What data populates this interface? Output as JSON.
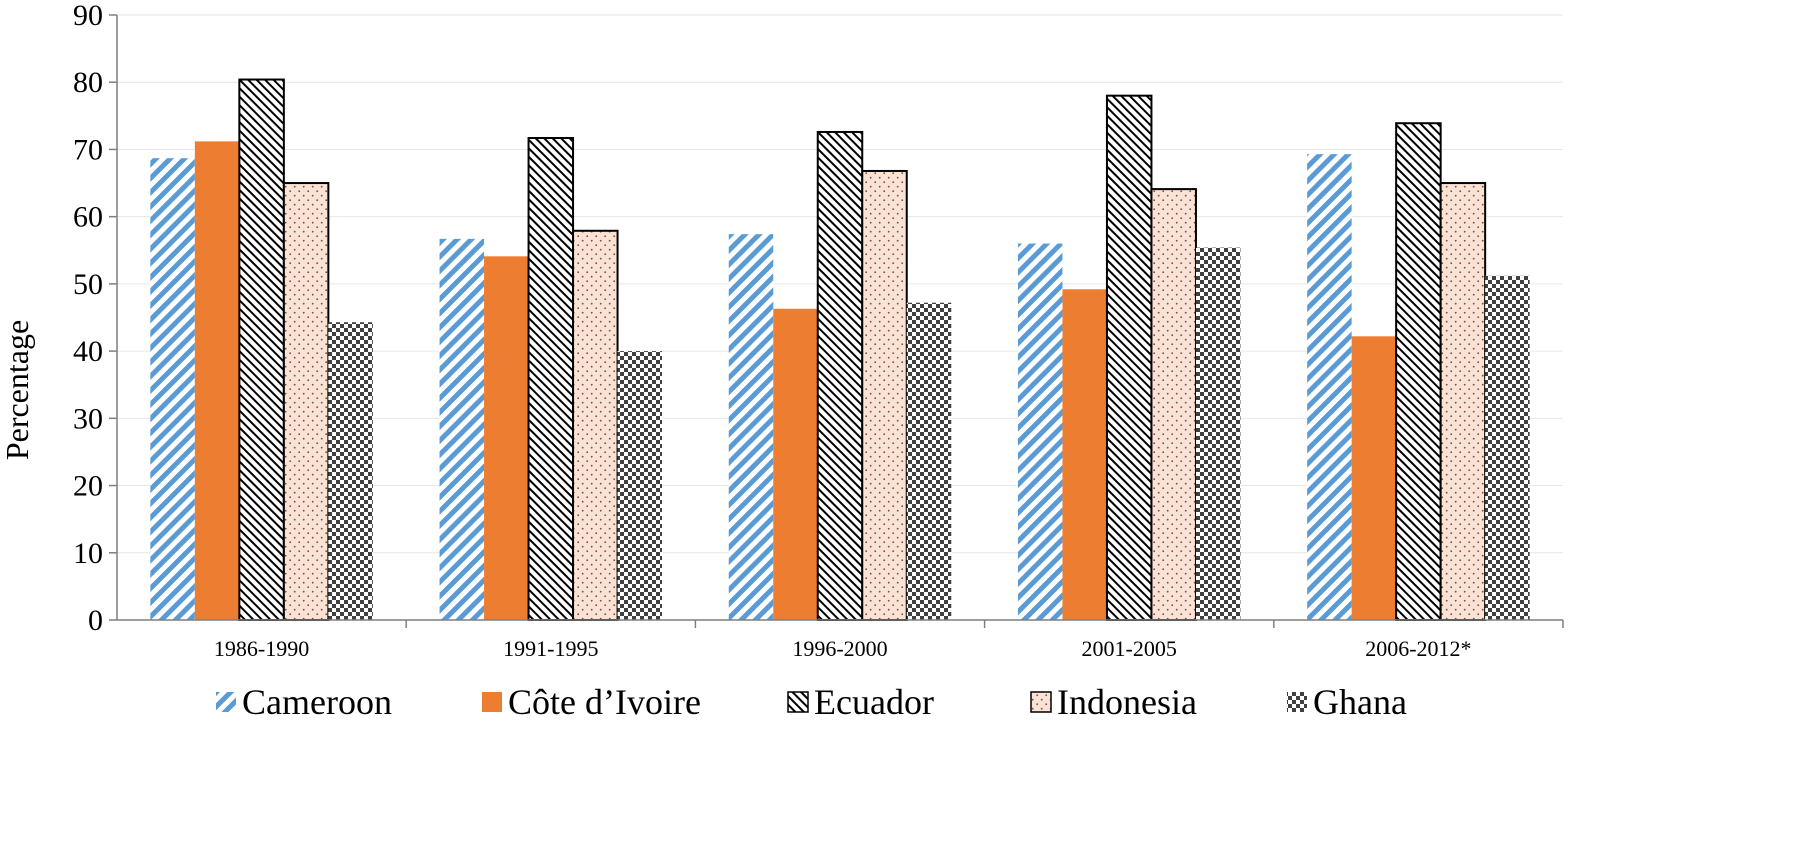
{
  "chart_data": {
    "type": "bar",
    "title": "",
    "xlabel": "",
    "ylabel": "Percentage",
    "ylim": [
      0,
      90
    ],
    "yticks": [
      0,
      10,
      20,
      30,
      40,
      50,
      60,
      70,
      80,
      90
    ],
    "grid": true,
    "legend_position": "bottom",
    "categories": [
      "1986-1990",
      "1991-1995",
      "1996-2000",
      "2001-2005",
      "2006-2012*"
    ],
    "series": [
      {
        "name": "Cameroon",
        "values": [
          68.7,
          56.7,
          57.4,
          56.0,
          69.3
        ],
        "color": "#5b9bd5",
        "pattern": "diagonal-stripes"
      },
      {
        "name": "Côte d’Ivoire",
        "values": [
          71.2,
          54.1,
          46.3,
          49.2,
          42.2
        ],
        "color": "#ed7d31",
        "pattern": "solid"
      },
      {
        "name": "Ecuador",
        "values": [
          80.4,
          71.7,
          72.6,
          78.0,
          73.9
        ],
        "color": "#000000",
        "pattern": "dense-diagonal-hatch"
      },
      {
        "name": "Indonesia",
        "values": [
          65.0,
          57.9,
          66.8,
          64.1,
          65.0
        ],
        "color": "#f9e2d6",
        "pattern": "dotted"
      },
      {
        "name": "Ghana",
        "values": [
          44.3,
          40.0,
          47.2,
          55.4,
          51.2
        ],
        "color": "#404040",
        "pattern": "checkerboard"
      }
    ]
  }
}
